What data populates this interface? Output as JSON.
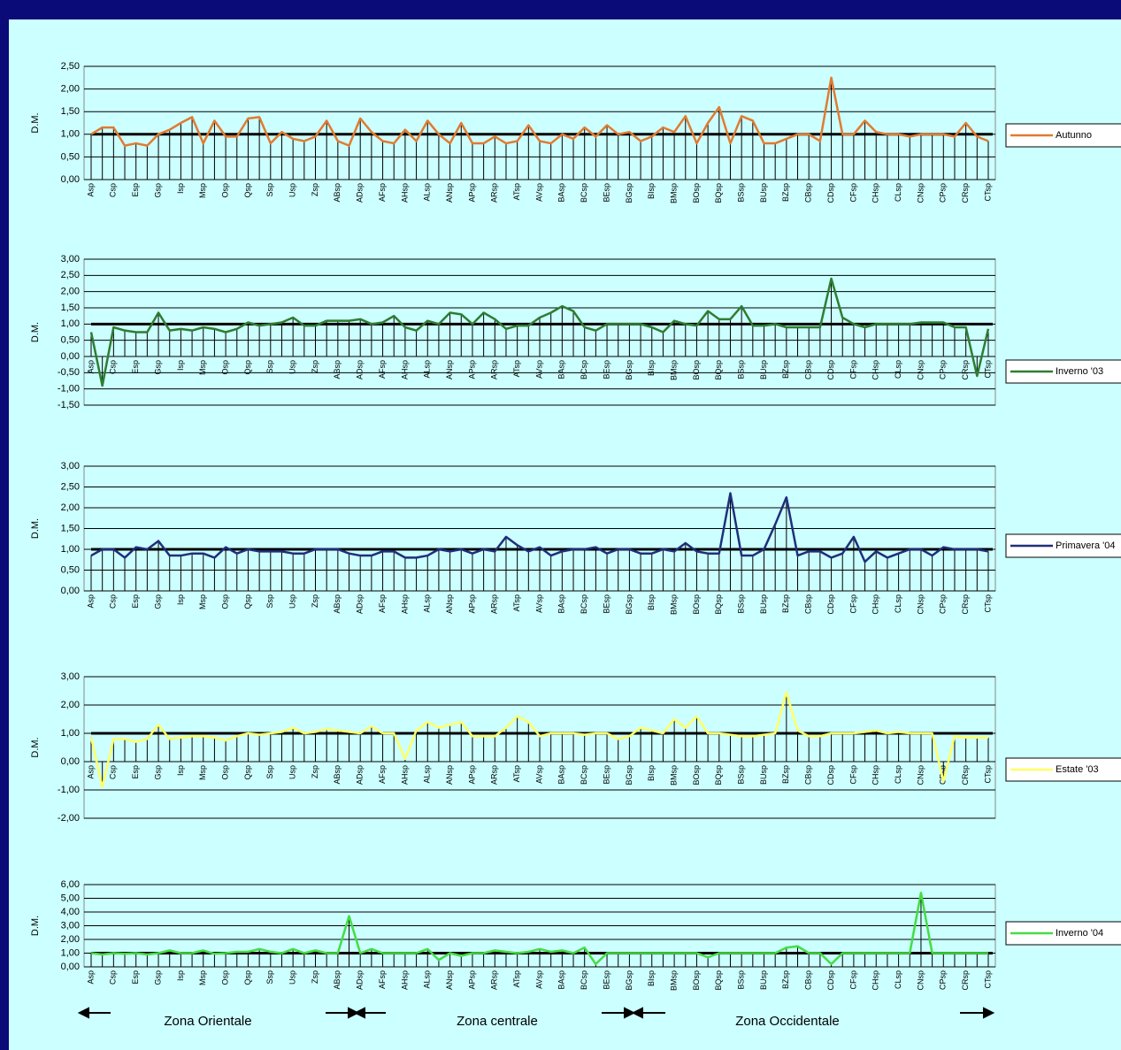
{
  "chart_data": [
    {
      "type": "line",
      "ylabel": "D.M.",
      "ylim": [
        0,
        2.5
      ],
      "yticks": [
        {
          "value": 0,
          "label": "0,00"
        },
        {
          "value": 0.5,
          "label": "0,50"
        },
        {
          "value": 1,
          "label": "1,00"
        },
        {
          "value": 1.5,
          "label": "1,50"
        },
        {
          "value": 2,
          "label": "2,00"
        },
        {
          "value": 2.5,
          "label": "2,50"
        }
      ],
      "grid": true,
      "reference_line": 1,
      "categories": [
        "Asp",
        null,
        "Csp",
        null,
        "Esp",
        null,
        "Gsp",
        null,
        "Isp",
        null,
        "Msp",
        null,
        "Osp",
        null,
        "Qsp",
        null,
        "Ssp",
        null,
        "Usp",
        null,
        "Zsp",
        null,
        "ABsp",
        null,
        "ADsp",
        null,
        "AFsp",
        null,
        "AHsp",
        null,
        "ALsp",
        null,
        "ANsp",
        null,
        "APsp",
        null,
        "ARsp",
        null,
        "ATsp",
        null,
        "AVsp",
        null,
        "BAsp",
        null,
        "BCsp",
        null,
        "BEsp",
        null,
        "BGsp",
        null,
        "BIsp",
        null,
        "BMsp",
        null,
        "BOsp",
        null,
        "BQsp",
        null,
        "BSsp",
        null,
        "BUsp",
        null,
        "BZsp",
        null,
        "CBsp",
        null,
        "CDsp",
        null,
        "CFsp",
        null,
        "CHsp",
        null,
        "CLsp",
        null,
        "CNsp",
        null,
        "CPsp",
        null,
        "CRsp",
        null,
        "CTsp"
      ],
      "series": [
        {
          "name": "Autunno",
          "color": "#e07b30",
          "values": [
            1.0,
            1.15,
            1.15,
            0.75,
            0.8,
            0.75,
            1.0,
            1.1,
            1.25,
            1.38,
            0.8,
            1.3,
            0.95,
            0.95,
            1.35,
            1.38,
            0.8,
            1.05,
            0.9,
            0.85,
            0.95,
            1.3,
            0.85,
            0.75,
            1.35,
            1.05,
            0.85,
            0.8,
            1.1,
            0.85,
            1.3,
            1.0,
            0.8,
            1.25,
            0.8,
            0.8,
            0.95,
            0.8,
            0.85,
            1.2,
            0.85,
            0.8,
            1.0,
            0.9,
            1.15,
            0.95,
            1.2,
            1.0,
            1.05,
            0.85,
            0.95,
            1.15,
            1.05,
            1.4,
            0.8,
            1.25,
            1.6,
            0.8,
            1.4,
            1.3,
            0.8,
            0.8,
            0.9,
            1.0,
            1.0,
            0.85,
            2.25,
            1.0,
            1.0,
            1.3,
            1.05,
            1.0,
            1.0,
            0.95,
            1.0,
            1.0,
            1.0,
            0.95,
            1.25,
            0.95,
            0.85
          ]
        }
      ]
    },
    {
      "type": "line",
      "ylabel": "D.M.",
      "ylim": [
        -1.5,
        3
      ],
      "yticks": [
        {
          "value": -1.5,
          "label": "-1,50"
        },
        {
          "value": -1,
          "label": "-1,00"
        },
        {
          "value": -0.5,
          "label": "-0,50"
        },
        {
          "value": 0,
          "label": "0,00"
        },
        {
          "value": 0.5,
          "label": "0,50"
        },
        {
          "value": 1,
          "label": "1,00"
        },
        {
          "value": 1.5,
          "label": "1,50"
        },
        {
          "value": 2,
          "label": "2,00"
        },
        {
          "value": 2.5,
          "label": "2,50"
        },
        {
          "value": 3,
          "label": "3,00"
        }
      ],
      "grid": true,
      "reference_line": 1,
      "categories": [
        "Asp",
        null,
        "Csp",
        null,
        "Esp",
        null,
        "Gsp",
        null,
        "Isp",
        null,
        "Msp",
        null,
        "Osp",
        null,
        "Qsp",
        null,
        "Ssp",
        null,
        "Usp",
        null,
        "Zsp",
        null,
        "ABsp",
        null,
        "ADsp",
        null,
        "AFsp",
        null,
        "AHsp",
        null,
        "ALsp",
        null,
        "ANsp",
        null,
        "APsp",
        null,
        "ARsp",
        null,
        "ATsp",
        null,
        "AVsp",
        null,
        "BAsp",
        null,
        "BCsp",
        null,
        "BEsp",
        null,
        "BGsp",
        null,
        "BIsp",
        null,
        "BMsp",
        null,
        "BOsp",
        null,
        "BQsp",
        null,
        "BSsp",
        null,
        "BUsp",
        null,
        "BZsp",
        null,
        "CBsp",
        null,
        "CDsp",
        null,
        "CFsp",
        null,
        "CHsp",
        null,
        "CLsp",
        null,
        "CNsp",
        null,
        "CPsp",
        null,
        "CRsp",
        null,
        "CTsp"
      ],
      "series": [
        {
          "name": "Inverno '03",
          "color": "#2e7d32",
          "values": [
            0.75,
            -0.9,
            0.9,
            0.8,
            0.75,
            0.75,
            1.35,
            0.8,
            0.85,
            0.8,
            0.9,
            0.85,
            0.75,
            0.85,
            1.05,
            0.95,
            1.0,
            1.05,
            1.2,
            0.95,
            0.95,
            1.1,
            1.1,
            1.1,
            1.15,
            1.0,
            1.05,
            1.25,
            0.9,
            0.8,
            1.1,
            1.0,
            1.35,
            1.3,
            1.0,
            1.35,
            1.15,
            0.85,
            0.95,
            0.95,
            1.2,
            1.35,
            1.55,
            1.4,
            0.9,
            0.8,
            1.0,
            1.0,
            1.0,
            1.0,
            0.9,
            0.75,
            1.1,
            1.0,
            0.95,
            1.4,
            1.15,
            1.15,
            1.55,
            0.95,
            0.95,
            1.0,
            0.9,
            0.9,
            0.9,
            0.9,
            2.4,
            1.2,
            1.0,
            0.9,
            1.0,
            1.0,
            1.0,
            1.0,
            1.05,
            1.05,
            1.05,
            0.9,
            0.9,
            -0.6,
            0.85
          ]
        }
      ]
    },
    {
      "type": "line",
      "ylabel": "D.M.",
      "ylim": [
        0,
        3
      ],
      "yticks": [
        {
          "value": 0,
          "label": "0,00"
        },
        {
          "value": 0.5,
          "label": "0,50"
        },
        {
          "value": 1,
          "label": "1,00"
        },
        {
          "value": 1.5,
          "label": "1,50"
        },
        {
          "value": 2,
          "label": "2,00"
        },
        {
          "value": 2.5,
          "label": "2,50"
        },
        {
          "value": 3,
          "label": "3,00"
        }
      ],
      "grid": true,
      "reference_line": 1,
      "categories": [
        "Asp",
        null,
        "Csp",
        null,
        "Esp",
        null,
        "Gsp",
        null,
        "Isp",
        null,
        "Msp",
        null,
        "Osp",
        null,
        "Qsp",
        null,
        "Ssp",
        null,
        "Usp",
        null,
        "Zsp",
        null,
        "ABsp",
        null,
        "ADsp",
        null,
        "AFsp",
        null,
        "AHsp",
        null,
        "ALsp",
        null,
        "ANsp",
        null,
        "APsp",
        null,
        "ARsp",
        null,
        "ATsp",
        null,
        "AVsp",
        null,
        "BAsp",
        null,
        "BCsp",
        null,
        "BEsp",
        null,
        "BGsp",
        null,
        "BIsp",
        null,
        "BMsp",
        null,
        "BOsp",
        null,
        "BQsp",
        null,
        "BSsp",
        null,
        "BUsp",
        null,
        "BZsp",
        null,
        "CBsp",
        null,
        "CDsp",
        null,
        "CFsp",
        null,
        "CHsp",
        null,
        "CLsp",
        null,
        "CNsp",
        null,
        "CPsp",
        null,
        "CRsp",
        null,
        "CTsp"
      ],
      "series": [
        {
          "name": "Primavera '04",
          "color": "#1f2f7a",
          "values": [
            0.85,
            1.0,
            1.0,
            0.8,
            1.05,
            1.0,
            1.2,
            0.85,
            0.85,
            0.9,
            0.9,
            0.8,
            1.05,
            0.9,
            1.0,
            0.95,
            0.95,
            0.95,
            0.9,
            0.9,
            1.0,
            1.0,
            1.0,
            0.9,
            0.85,
            0.85,
            0.95,
            0.95,
            0.8,
            0.8,
            0.85,
            1.0,
            0.95,
            1.0,
            0.9,
            1.0,
            0.95,
            1.3,
            1.1,
            0.95,
            1.05,
            0.85,
            0.95,
            1.0,
            1.0,
            1.05,
            0.9,
            1.0,
            1.0,
            0.9,
            0.9,
            1.0,
            0.95,
            1.15,
            0.95,
            0.9,
            0.9,
            2.35,
            0.85,
            0.85,
            1.0,
            1.6,
            2.25,
            0.85,
            0.95,
            0.95,
            0.8,
            0.9,
            1.3,
            0.7,
            0.95,
            0.8,
            0.9,
            1.0,
            1.0,
            0.85,
            1.05,
            1.0,
            1.0,
            1.0,
            0.95
          ]
        }
      ]
    },
    {
      "type": "line",
      "ylabel": "D.M.",
      "ylim": [
        -2,
        3
      ],
      "yticks": [
        {
          "value": -2,
          "label": "-2,00"
        },
        {
          "value": -1,
          "label": "-1,00"
        },
        {
          "value": 0,
          "label": "0,00"
        },
        {
          "value": 1,
          "label": "1,00"
        },
        {
          "value": 2,
          "label": "2,00"
        },
        {
          "value": 3,
          "label": "3,00"
        }
      ],
      "grid": true,
      "reference_line": 1,
      "categories": [
        "Asp",
        null,
        "Csp",
        null,
        "Esp",
        null,
        "Gsp",
        null,
        "Isp",
        null,
        "Msp",
        null,
        "Osp",
        null,
        "Qsp",
        null,
        "Ssp",
        null,
        "Usp",
        null,
        "Zsp",
        null,
        "ABsp",
        null,
        "ADsp",
        null,
        "AFsp",
        null,
        "AHsp",
        null,
        "ALsp",
        null,
        "ANsp",
        null,
        "APsp",
        null,
        "ARsp",
        null,
        "ATsp",
        null,
        "AVsp",
        null,
        "BAsp",
        null,
        "BCsp",
        null,
        "BEsp",
        null,
        "BGsp",
        null,
        "BIsp",
        null,
        "BMsp",
        null,
        "BOsp",
        null,
        "BQsp",
        null,
        "BSsp",
        null,
        "BUsp",
        null,
        "BZsp",
        null,
        "CBsp",
        null,
        "CDsp",
        null,
        "CFsp",
        null,
        "CHsp",
        null,
        "CLsp",
        null,
        "CNsp",
        null,
        "CPsp",
        null,
        "CRsp",
        null,
        "CTsp"
      ],
      "series": [
        {
          "name": "Estate '03",
          "color": "#ffff66",
          "values": [
            0.85,
            -0.9,
            0.8,
            0.8,
            0.7,
            0.8,
            1.3,
            0.8,
            0.85,
            0.9,
            0.9,
            0.85,
            0.75,
            0.9,
            1.0,
            0.95,
            1.0,
            1.05,
            1.2,
            1.0,
            1.05,
            1.15,
            1.1,
            1.05,
            1.0,
            1.25,
            1.0,
            1.0,
            0.1,
            1.1,
            1.4,
            1.2,
            1.3,
            1.4,
            0.9,
            0.9,
            0.9,
            1.2,
            1.6,
            1.4,
            0.9,
            1.0,
            1.0,
            1.0,
            0.95,
            1.0,
            1.0,
            0.8,
            0.9,
            1.2,
            1.1,
            1.0,
            1.5,
            1.2,
            1.6,
            1.0,
            1.0,
            0.95,
            0.9,
            0.9,
            0.95,
            1.0,
            2.45,
            1.1,
            0.9,
            0.9,
            1.0,
            1.0,
            1.0,
            1.05,
            1.1,
            1.0,
            1.05,
            1.0,
            1.0,
            1.0,
            -0.7,
            0.9,
            0.85,
            0.85,
            0.85
          ]
        }
      ]
    },
    {
      "type": "line",
      "ylabel": "D.M.",
      "ylim": [
        0,
        6
      ],
      "yticks": [
        {
          "value": 0,
          "label": "0,00"
        },
        {
          "value": 1,
          "label": "1,00"
        },
        {
          "value": 2,
          "label": "2,00"
        },
        {
          "value": 3,
          "label": "3,00"
        },
        {
          "value": 4,
          "label": "4,00"
        },
        {
          "value": 5,
          "label": "5,00"
        },
        {
          "value": 6,
          "label": "6,00"
        }
      ],
      "grid": true,
      "reference_line": 1,
      "categories": [
        "Asp",
        null,
        "Csp",
        null,
        "Esp",
        null,
        "Gsp",
        null,
        "Isp",
        null,
        "Msp",
        null,
        "Osp",
        null,
        "Qsp",
        null,
        "Ssp",
        null,
        "Usp",
        null,
        "Zsp",
        null,
        "ABsp",
        null,
        "ADsp",
        null,
        "AFsp",
        null,
        "AHsp",
        null,
        "ALsp",
        null,
        "ANsp",
        null,
        "APsp",
        null,
        "ARsp",
        null,
        "ATsp",
        null,
        "AVsp",
        null,
        "BAsp",
        null,
        "BCsp",
        null,
        "BEsp",
        null,
        "BGsp",
        null,
        "BIsp",
        null,
        "BMsp",
        null,
        "BOsp",
        null,
        "BQsp",
        null,
        "BSsp",
        null,
        "BUsp",
        null,
        "BZsp",
        null,
        "CBsp",
        null,
        "CDsp",
        null,
        "CFsp",
        null,
        "CHsp",
        null,
        "CLsp",
        null,
        "CNsp",
        null,
        "CPsp",
        null,
        "CRsp",
        null,
        "CTsp"
      ],
      "series": [
        {
          "name": "Inverno '04",
          "color": "#44dd44",
          "values": [
            1.0,
            0.9,
            1.0,
            0.95,
            1.0,
            0.9,
            1.0,
            1.2,
            1.0,
            1.0,
            1.2,
            0.95,
            1.0,
            1.1,
            1.1,
            1.3,
            1.1,
            1.0,
            1.3,
            1.0,
            1.2,
            1.0,
            1.0,
            3.7,
            1.0,
            1.3,
            1.0,
            1.0,
            1.0,
            1.0,
            1.3,
            0.5,
            1.0,
            0.8,
            1.0,
            1.0,
            1.2,
            1.1,
            1.0,
            1.1,
            1.3,
            1.1,
            1.2,
            1.0,
            1.4,
            0.2,
            1.0,
            1.0,
            1.0,
            1.0,
            1.0,
            1.0,
            1.0,
            1.0,
            1.0,
            0.7,
            1.0,
            1.0,
            1.0,
            1.0,
            1.0,
            1.0,
            1.4,
            1.5,
            1.0,
            1.0,
            0.2,
            1.0,
            1.0,
            1.0,
            1.0,
            1.0,
            1.0,
            1.0,
            5.4,
            1.0,
            1.0,
            1.0,
            1.0,
            1.0,
            1.0
          ]
        }
      ],
      "annotations": [
        "Zona Orientale",
        "Zona centrale",
        "Zona Occidentale"
      ]
    }
  ]
}
